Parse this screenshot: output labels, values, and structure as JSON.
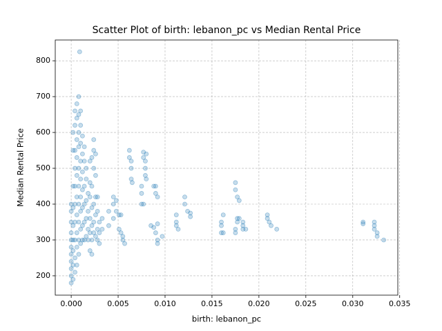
{
  "chart_data": {
    "type": "scatter",
    "title": "Scatter Plot of birth: lebanon_pc vs Median Rental Price",
    "x_label": "birth: lebanon_pc",
    "y_label": "Median Rental Price",
    "color": "#1f77b4",
    "grid": true,
    "xlim": [
      -0.0017,
      0.0348
    ],
    "ylim": [
      146,
      858
    ],
    "xticks": [
      {
        "value": 0,
        "label": "0.000"
      },
      {
        "value": 0.005,
        "label": "0.005"
      },
      {
        "value": 0.01,
        "label": "0.010"
      },
      {
        "value": 0.015,
        "label": "0.015"
      },
      {
        "value": 0.02,
        "label": "0.020"
      },
      {
        "value": 0.025,
        "label": "0.025"
      },
      {
        "value": 0.03,
        "label": "0.030"
      },
      {
        "value": 0.035,
        "label": "0.035"
      }
    ],
    "yticks": [
      200,
      300,
      400,
      500,
      600,
      700,
      800
    ],
    "x": [
      0,
      0,
      0,
      0,
      0,
      0,
      0,
      0,
      0,
      0,
      0,
      0.0002,
      0.0002,
      0.0002,
      0.0002,
      0.0002,
      0.0002,
      0.0002,
      0.0002,
      0.0002,
      0.0004,
      0.0004,
      0.0004,
      0.0004,
      0.0004,
      0.0004,
      0.0004,
      0.0004,
      0.0004,
      0.0004,
      0.0006,
      0.0006,
      0.0006,
      0.0006,
      0.0006,
      0.0006,
      0.0006,
      0.0006,
      0.0006,
      0.0006,
      0.0008,
      0.0008,
      0.0008,
      0.0008,
      0.0008,
      0.0008,
      0.0008,
      0.0008,
      0.0008,
      0.0008,
      0.0009,
      0.001,
      0.001,
      0.001,
      0.001,
      0.001,
      0.001,
      0.001,
      0.001,
      0.001,
      0.0012,
      0.0012,
      0.0012,
      0.0012,
      0.0012,
      0.0012,
      0.0012,
      0.0014,
      0.0014,
      0.0014,
      0.0014,
      0.0014,
      0.0014,
      0.0016,
      0.0016,
      0.0016,
      0.0016,
      0.0016,
      0.0018,
      0.0018,
      0.0018,
      0.0018,
      0.002,
      0.002,
      0.002,
      0.002,
      0.002,
      0.002,
      0.0022,
      0.0022,
      0.0022,
      0.0022,
      0.0022,
      0.0022,
      0.0024,
      0.0024,
      0.0024,
      0.0024,
      0.0024,
      0.0024,
      0.0026,
      0.0026,
      0.0026,
      0.0026,
      0.0026,
      0.0028,
      0.0028,
      0.0028,
      0.0028,
      0.003,
      0.003,
      0.003,
      0.0033,
      0.0033,
      0.004,
      0.004,
      0.0045,
      0.0045,
      0.0045,
      0.0048,
      0.0048,
      0.0051,
      0.0051,
      0.0053,
      0.0053,
      0.0055,
      0.0055,
      0.0057,
      0.0062,
      0.0062,
      0.0064,
      0.0064,
      0.0064,
      0.0065,
      0.0075,
      0.0075,
      0.0075,
      0.0077,
      0.0077,
      0.0077,
      0.0079,
      0.0079,
      0.0079,
      0.008,
      0.008,
      0.0085,
      0.0088,
      0.0088,
      0.009,
      0.009,
      0.009,
      0.0092,
      0.0092,
      0.0092,
      0.0092,
      0.0097,
      0.0112,
      0.0112,
      0.0112,
      0.0114,
      0.0121,
      0.0121,
      0.0124,
      0.0127,
      0.0127,
      0.016,
      0.016,
      0.016,
      0.0162,
      0.0162,
      0.0175,
      0.0175,
      0.0175,
      0.0175,
      0.0177,
      0.0177,
      0.0177,
      0.0179,
      0.0179,
      0.0183,
      0.0183,
      0.0183,
      0.0186,
      0.0209,
      0.0209,
      0.0211,
      0.0213,
      0.0219,
      0.0311,
      0.0311,
      0.0323,
      0.0323,
      0.0323,
      0.0326,
      0.0326,
      0.0333
    ],
    "values": [
      180,
      200,
      220,
      240,
      260,
      280,
      300,
      320,
      350,
      380,
      400,
      190,
      230,
      270,
      300,
      340,
      390,
      450,
      550,
      600,
      210,
      250,
      300,
      350,
      400,
      450,
      500,
      550,
      620,
      660,
      230,
      280,
      320,
      370,
      420,
      480,
      530,
      580,
      640,
      680,
      260,
      300,
      350,
      400,
      450,
      500,
      560,
      600,
      650,
      700,
      825,
      290,
      330,
      380,
      420,
      470,
      520,
      570,
      620,
      660,
      300,
      340,
      390,
      440,
      490,
      540,
      590,
      300,
      350,
      400,
      450,
      520,
      560,
      310,
      360,
      410,
      470,
      500,
      300,
      330,
      380,
      430,
      270,
      320,
      360,
      420,
      460,
      520,
      260,
      300,
      340,
      390,
      450,
      530,
      320,
      350,
      400,
      500,
      550,
      580,
      310,
      370,
      420,
      480,
      540,
      300,
      330,
      380,
      420,
      290,
      320,
      350,
      330,
      360,
      340,
      380,
      360,
      400,
      420,
      380,
      410,
      370,
      330,
      320,
      370,
      310,
      300,
      290,
      550,
      530,
      500,
      470,
      520,
      460,
      450,
      430,
      400,
      545,
      530,
      400,
      520,
      480,
      500,
      540,
      470,
      340,
      335,
      450,
      450,
      430,
      320,
      420,
      300,
      290,
      345,
      310,
      370,
      350,
      340,
      330,
      400,
      420,
      380,
      365,
      375,
      350,
      340,
      320,
      370,
      320,
      460,
      440,
      330,
      320,
      420,
      360,
      350,
      410,
      360,
      340,
      350,
      330,
      330,
      370,
      360,
      350,
      340,
      330,
      350,
      345,
      350,
      340,
      330,
      320,
      310,
      300
    ]
  }
}
